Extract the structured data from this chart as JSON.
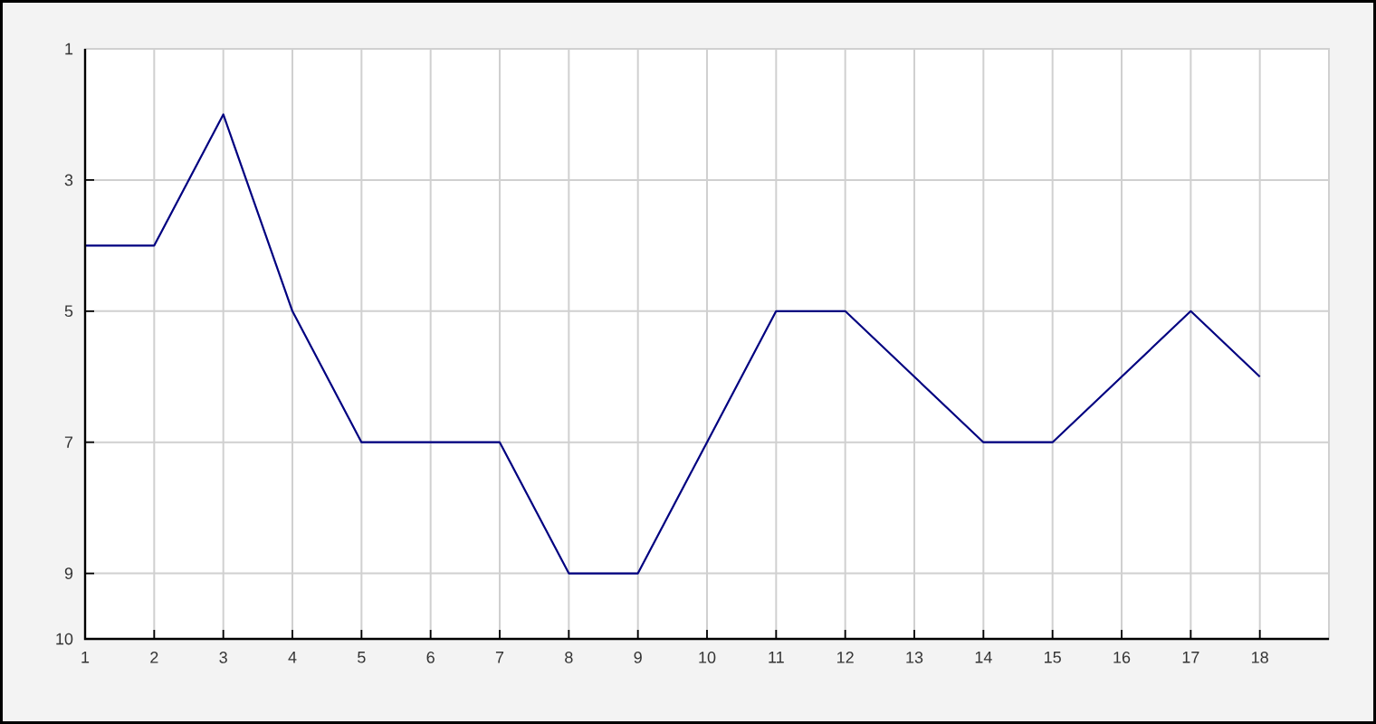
{
  "chart_data": {
    "type": "line",
    "x": [
      1,
      2,
      3,
      4,
      5,
      6,
      7,
      8,
      9,
      10,
      11,
      12,
      13,
      14,
      15,
      16,
      17,
      18
    ],
    "values": [
      4,
      4,
      2,
      5,
      7,
      7,
      7,
      9,
      9,
      7,
      5,
      5,
      6,
      7,
      7,
      6,
      5,
      6
    ],
    "color": "#000080",
    "marker": "none",
    "line_style": "solid",
    "xlim": [
      1,
      19
    ],
    "ylim": [
      10,
      1
    ],
    "xticks": [
      1,
      2,
      3,
      4,
      5,
      6,
      7,
      8,
      9,
      10,
      11,
      12,
      13,
      14,
      15,
      16,
      17,
      18
    ],
    "yticks": [
      1,
      3,
      5,
      7,
      9,
      10
    ],
    "grid": true
  }
}
